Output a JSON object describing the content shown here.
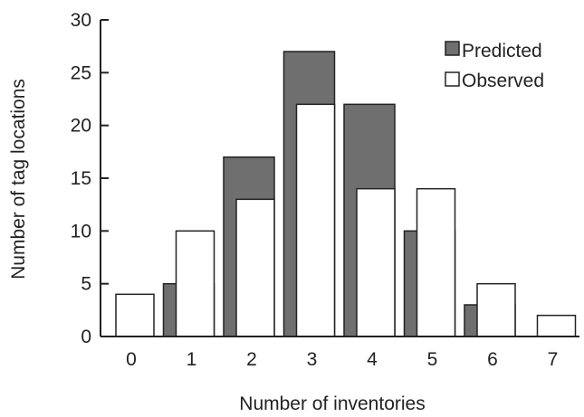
{
  "chart_data": {
    "type": "bar",
    "categories": [
      "0",
      "1",
      "2",
      "3",
      "4",
      "5",
      "6",
      "7"
    ],
    "series": [
      {
        "name": "Predicted",
        "values": [
          0,
          5,
          17,
          27,
          22,
          10,
          3,
          0
        ],
        "color": "#6f6f6f"
      },
      {
        "name": "Observed",
        "values": [
          4,
          10,
          13,
          22,
          14,
          14,
          5,
          2
        ],
        "color": "#ffffff"
      }
    ],
    "xlabel": "Number of inventories",
    "ylabel": "Number of tag locations",
    "ylim": [
      0,
      30
    ],
    "yticks": [
      0,
      5,
      10,
      15,
      20,
      25,
      30
    ],
    "grid": false,
    "legend": "top-right"
  }
}
